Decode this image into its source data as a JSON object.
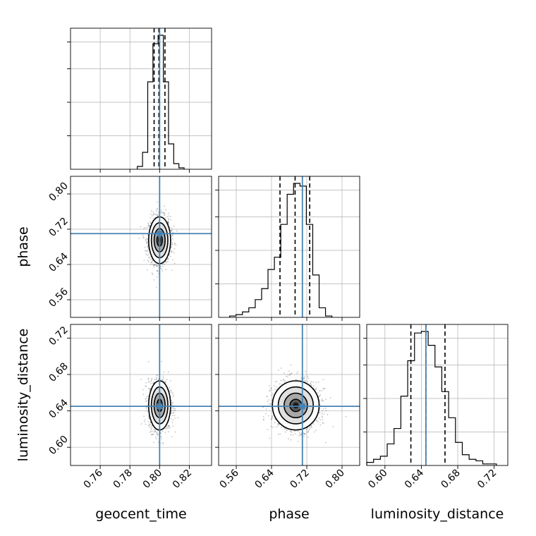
{
  "figure": {
    "type": "corner_plot",
    "parameters": [
      "geocent_time",
      "phase",
      "luminosity_distance"
    ],
    "axis_labels": {
      "x": [
        "geocent_time",
        "phase",
        "luminosity_distance"
      ],
      "y": [
        "phase",
        "luminosity_distance"
      ]
    },
    "colors": {
      "truth": "#4682b4",
      "line": "#000000",
      "grid": "#b0b0b0",
      "scatter": "#555555"
    }
  },
  "chart_data": {
    "type": "corner",
    "parameters": [
      "geocent_time",
      "phase",
      "luminosity_distance"
    ],
    "truths": [
      0.8,
      0.71,
      0.645
    ],
    "ranges": [
      [
        0.74,
        0.835
      ],
      [
        0.52,
        0.84
      ],
      [
        0.58,
        0.735
      ]
    ],
    "ticks": [
      {
        "values": [
          0.76,
          0.78,
          0.8,
          0.82
        ],
        "labels": [
          "0.76",
          "0.78",
          "0.80",
          "0.82"
        ]
      },
      {
        "values": [
          0.56,
          0.64,
          0.72,
          0.8
        ],
        "labels": [
          "0.56",
          "0.64",
          "0.72",
          "0.80"
        ]
      },
      {
        "values": [
          0.6,
          0.64,
          0.68,
          0.72
        ],
        "labels": [
          "0.60",
          "0.64",
          "0.68",
          "0.72"
        ]
      }
    ],
    "grid": true,
    "histograms": [
      {
        "param": "geocent_time",
        "quantiles": [
          0.7963,
          0.7995,
          0.8036
        ],
        "bins": [
          0.785,
          0.7885,
          0.792,
          0.7955,
          0.799,
          0.8025,
          0.806,
          0.8095,
          0.813,
          0.8165
        ],
        "counts": [
          2,
          12,
          62,
          89,
          95,
          62,
          18,
          4,
          1
        ]
      },
      {
        "param": "phase",
        "quantiles": [
          0.6592,
          0.6935,
          0.7266
        ],
        "bins": [
          0.545,
          0.5595,
          0.574,
          0.5885,
          0.603,
          0.6175,
          0.632,
          0.6465,
          0.661,
          0.6755,
          0.69,
          0.7045,
          0.719,
          0.7335,
          0.748,
          0.7625,
          0.777
        ],
        "counts": [
          1,
          2,
          4,
          7,
          13,
          21,
          35,
          44,
          68,
          90,
          98,
          96,
          68,
          31,
          7,
          1
        ]
      },
      {
        "param": "luminosity_distance",
        "quantiles": [
          0.6285,
          0.645,
          0.666
        ],
        "bins": [
          0.58,
          0.5875,
          0.595,
          0.6025,
          0.61,
          0.6175,
          0.625,
          0.6325,
          0.64,
          0.6475,
          0.655,
          0.6625,
          0.67,
          0.6775,
          0.685,
          0.6925,
          0.7,
          0.7075,
          0.715,
          0.7225
        ],
        "counts": [
          2,
          4,
          6,
          14,
          24,
          45,
          68,
          86,
          87,
          78,
          64,
          48,
          31,
          15,
          7,
          4,
          3,
          1,
          1
        ]
      }
    ],
    "correlations": [
      {
        "x": "geocent_time",
        "y": "phase",
        "x_mean": 0.8,
        "x_sd": 0.0037,
        "y_mean": 0.695,
        "y_sd": 0.0265,
        "rho": 0
      },
      {
        "x": "geocent_time",
        "y": "luminosity_distance",
        "x_mean": 0.8,
        "x_sd": 0.0037,
        "y_mean": 0.646,
        "y_sd": 0.0135,
        "rho": 0
      },
      {
        "x": "phase",
        "y": "luminosity_distance",
        "x_mean": 0.695,
        "x_sd": 0.0265,
        "y_mean": 0.646,
        "y_sd": 0.0135,
        "rho": 0
      }
    ]
  }
}
